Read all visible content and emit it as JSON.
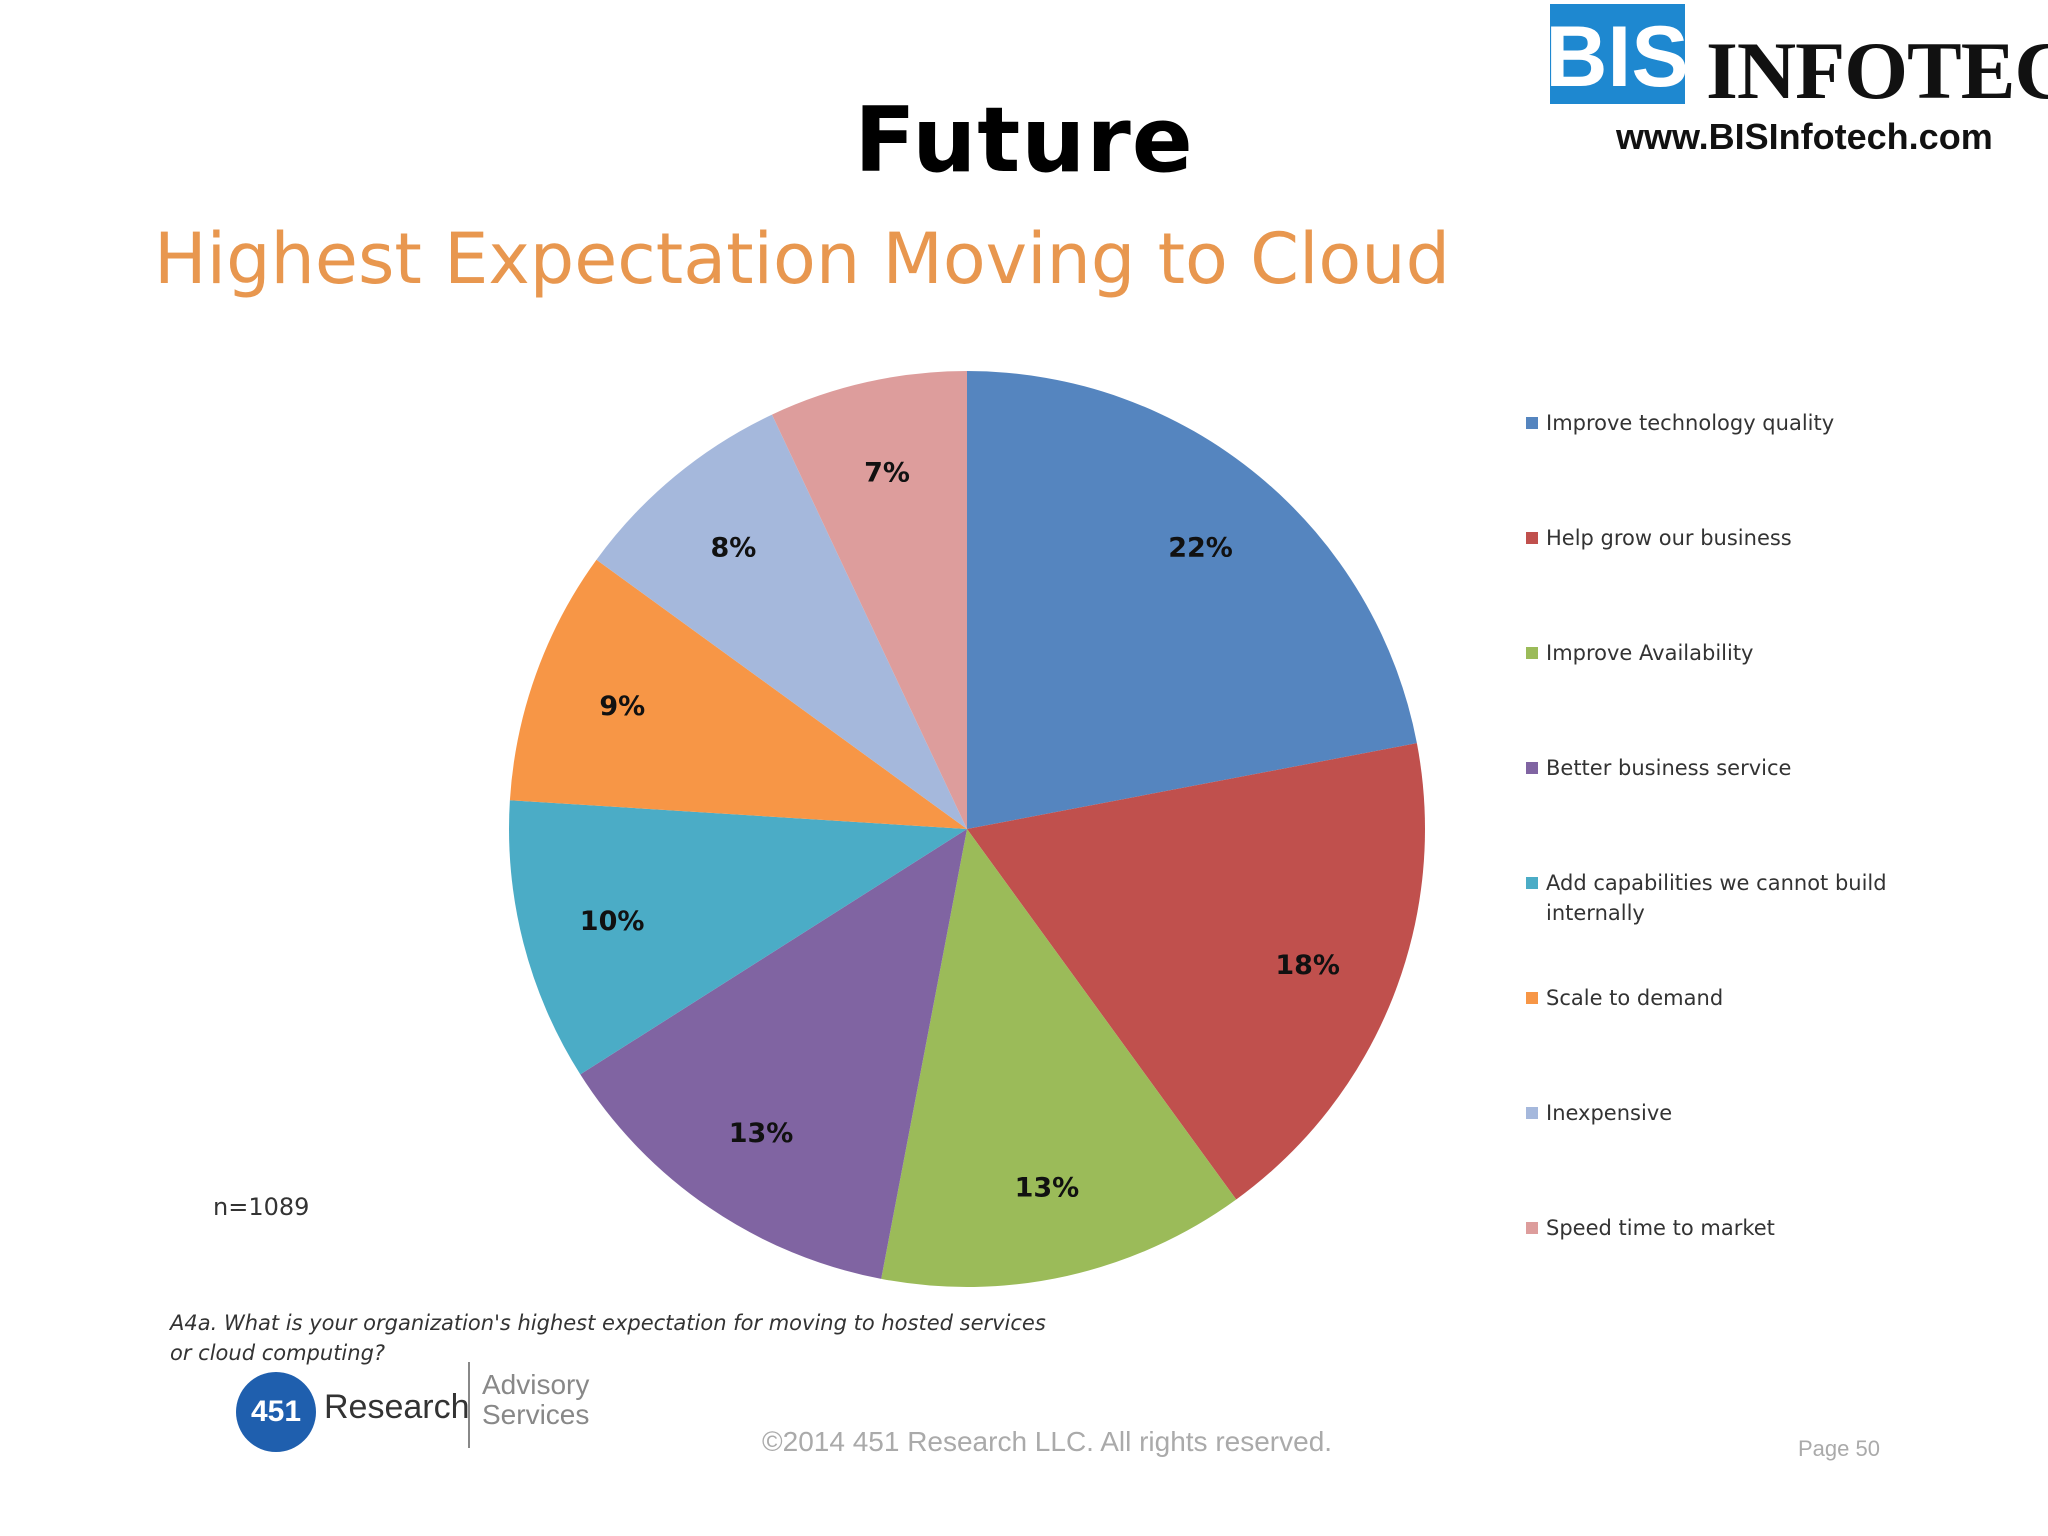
{
  "slide": {
    "title": "Future",
    "logo_brand": "INFOTECH",
    "logo_mark": "BIS",
    "logo_url": "www.BISInfotech.com"
  },
  "chart_data": {
    "type": "pie",
    "title": "Highest Expectation Moving to Cloud",
    "categories": [
      "Improve technology quality",
      "Help grow our business",
      "Improve Availability",
      "Better business service",
      "Add capabilities we cannot build internally",
      "Scale to demand",
      "Inexpensive",
      "Speed time to market"
    ],
    "values": [
      22,
      18,
      13,
      13,
      10,
      9,
      8,
      7
    ],
    "labels": [
      "22%",
      "18%",
      "13%",
      "13%",
      "10%",
      "9%",
      "8%",
      "7%"
    ],
    "colors": [
      "#5585bf",
      "#c0504d",
      "#9bbb59",
      "#8064a2",
      "#4bacc6",
      "#f79646",
      "#a5b8dc",
      "#dd9d9c"
    ],
    "legend_position": "right",
    "n_note": "n=1089"
  },
  "footer": {
    "question": "A4a.  What is your organization's highest expectation for moving to hosted services or cloud computing?",
    "research_number": "451",
    "research_word": "Research",
    "advisory_line1": "Advisory",
    "advisory_line2": "Services",
    "copyright": "©2014 451 Research LLC. All rights reserved.",
    "page": "Page 50"
  }
}
